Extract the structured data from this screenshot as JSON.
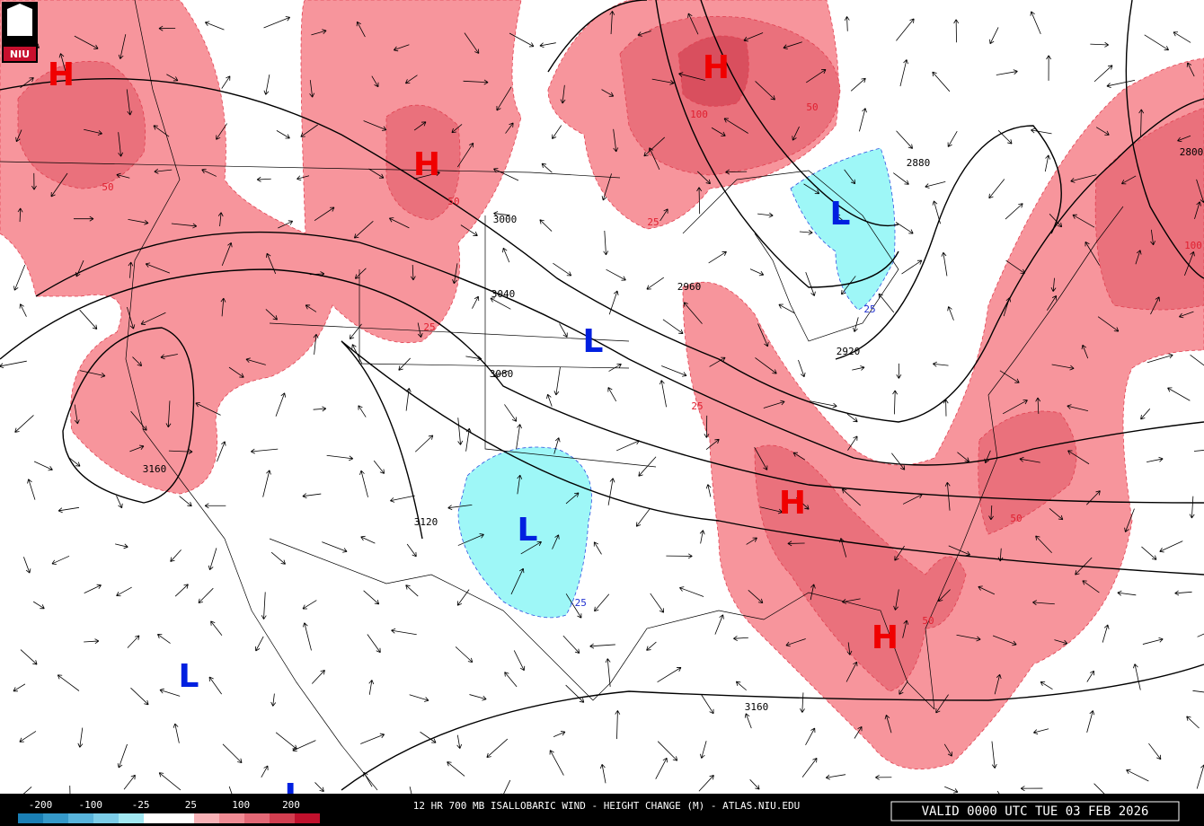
{
  "logo": "NIU",
  "centers": [
    "H",
    "H",
    "H",
    "L",
    "L",
    "L",
    "H",
    "H",
    "L",
    "L"
  ],
  "contour_labels": [
    3000,
    3040,
    3080,
    3120,
    3160,
    3160,
    2960,
    2920,
    2880,
    2800
  ],
  "change_labels": [
    50,
    50,
    100,
    50,
    25,
    25,
    25,
    50,
    50,
    100,
    25,
    -25
  ],
  "legend": {
    "labels": [
      -200,
      -100,
      -25,
      25,
      100,
      200
    ]
  },
  "title": "12 HR 700 MB ISALLOBARIC WIND - HEIGHT CHANGE (M) - ATLAS.NIU.EDU",
  "valid": "VALID 0000 UTC TUE 03 FEB 2026"
}
